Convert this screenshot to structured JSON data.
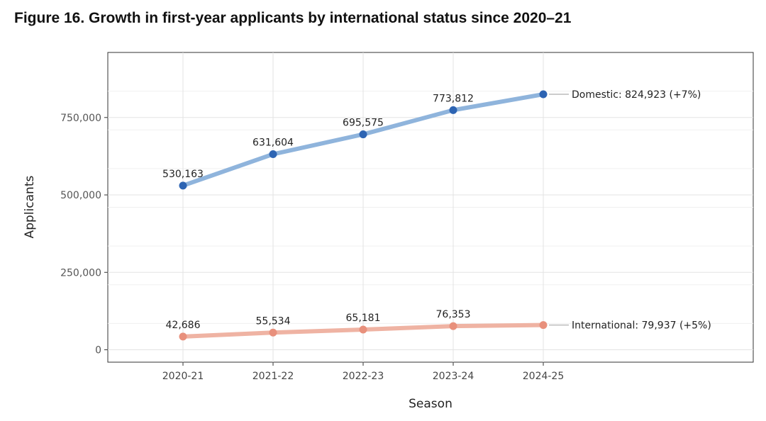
{
  "title": "Figure 16. Growth in first-year applicants by international status since 2020–21",
  "chart_data": {
    "type": "line",
    "xlabel": "Season",
    "ylabel": "Applicants",
    "categories": [
      "2020-21",
      "2021-22",
      "2022-23",
      "2023-24",
      "2024-25"
    ],
    "ylim": [
      -40000,
      960000
    ],
    "yticks": [
      0,
      250000,
      500000,
      750000
    ],
    "ytick_labels": [
      "0",
      "250,000",
      "500,000",
      "750,000"
    ],
    "grid": true,
    "series": [
      {
        "name": "Domestic",
        "values": [
          530163,
          631604,
          695575,
          773812,
          824923
        ],
        "point_labels": [
          "530,163",
          "631,604",
          "695,575",
          "773,812",
          ""
        ],
        "end_label": "Domestic: 824,923 (+7%)",
        "line_color": "#8fb4dc",
        "point_color": "#2d64b3"
      },
      {
        "name": "International",
        "values": [
          42686,
          55534,
          65181,
          76353,
          79937
        ],
        "point_labels": [
          "42,686",
          "55,534",
          "65,181",
          "76,353",
          ""
        ],
        "end_label": "International: 79,937 (+5%)",
        "line_color": "#efb3a3",
        "point_color": "#e8907c"
      }
    ]
  }
}
